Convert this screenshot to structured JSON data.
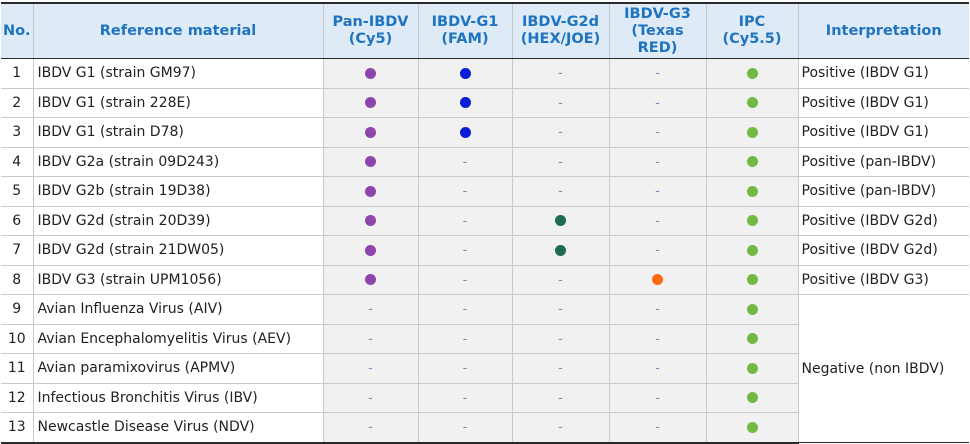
{
  "header": {
    "no": "No.",
    "reference": "Reference material",
    "pan_ibdv": [
      "Pan-IBDV",
      "(Cy5)"
    ],
    "g1": [
      "IBDV-G1",
      "(FAM)"
    ],
    "g2d": [
      "IBDV-G2d",
      "(HEX/JOE)"
    ],
    "g3": [
      "IBDV-G3",
      "(Texas RED)"
    ],
    "ipc": [
      "IPC",
      "(Cy5.5)"
    ],
    "interpretation": "Interpretation"
  },
  "colors": {
    "pan_ibdv": "#8e44ad",
    "g1": "#0a1ed8",
    "g2d": "#1d6b54",
    "g3": "#ff6a13",
    "ipc": "#72b943",
    "header_text": "#1f74c0",
    "header_bg": "#deeaf6"
  },
  "markers": {
    "positive_icon": "filled-dot",
    "negative_symbol": "-"
  },
  "rows": [
    {
      "no": "1",
      "reference": "IBDV G1 (strain GM97)",
      "pan_ibdv": true,
      "g1": true,
      "g2d": false,
      "g3": false,
      "ipc": true,
      "interpretation": "Positive (IBDV G1)"
    },
    {
      "no": "2",
      "reference": "IBDV G1 (strain 228E)",
      "pan_ibdv": true,
      "g1": true,
      "g2d": false,
      "g3": false,
      "ipc": true,
      "interpretation": "Positive (IBDV G1)"
    },
    {
      "no": "3",
      "reference": "IBDV G1 (strain D78)",
      "pan_ibdv": true,
      "g1": true,
      "g2d": false,
      "g3": false,
      "ipc": true,
      "interpretation": "Positive (IBDV G1)"
    },
    {
      "no": "4",
      "reference": "IBDV G2a (strain 09D243)",
      "pan_ibdv": true,
      "g1": false,
      "g2d": false,
      "g3": false,
      "ipc": true,
      "interpretation": "Positive (pan-IBDV)"
    },
    {
      "no": "5",
      "reference": "IBDV G2b (strain 19D38)",
      "pan_ibdv": true,
      "g1": false,
      "g2d": false,
      "g3": false,
      "ipc": true,
      "interpretation": "Positive (pan-IBDV)"
    },
    {
      "no": "6",
      "reference": "IBDV G2d (strain 20D39)",
      "pan_ibdv": true,
      "g1": false,
      "g2d": true,
      "g3": false,
      "ipc": true,
      "interpretation": "Positive (IBDV G2d)"
    },
    {
      "no": "7",
      "reference": "IBDV G2d (strain 21DW05)",
      "pan_ibdv": true,
      "g1": false,
      "g2d": true,
      "g3": false,
      "ipc": true,
      "interpretation": "Positive (IBDV G2d)"
    },
    {
      "no": "8",
      "reference": "IBDV G3 (strain UPM1056)",
      "pan_ibdv": true,
      "g1": false,
      "g2d": false,
      "g3": true,
      "ipc": true,
      "interpretation": "Positive (IBDV G3)"
    },
    {
      "no": "9",
      "reference": "Avian Influenza Virus (AIV)",
      "pan_ibdv": false,
      "g1": false,
      "g2d": false,
      "g3": false,
      "ipc": true
    },
    {
      "no": "10",
      "reference": "Avian Encephalomyelitis Virus (AEV)",
      "pan_ibdv": false,
      "g1": false,
      "g2d": false,
      "g3": false,
      "ipc": true
    },
    {
      "no": "11",
      "reference": "Avian paramixovirus (APMV)",
      "pan_ibdv": false,
      "g1": false,
      "g2d": false,
      "g3": false,
      "ipc": true
    },
    {
      "no": "12",
      "reference": "Infectious Bronchitis Virus (IBV)",
      "pan_ibdv": false,
      "g1": false,
      "g2d": false,
      "g3": false,
      "ipc": true
    },
    {
      "no": "13",
      "reference": "Newcastle Disease Virus (NDV)",
      "pan_ibdv": false,
      "g1": false,
      "g2d": false,
      "g3": false,
      "ipc": true
    }
  ],
  "merged_interpretation": "Negative (non IBDV)"
}
